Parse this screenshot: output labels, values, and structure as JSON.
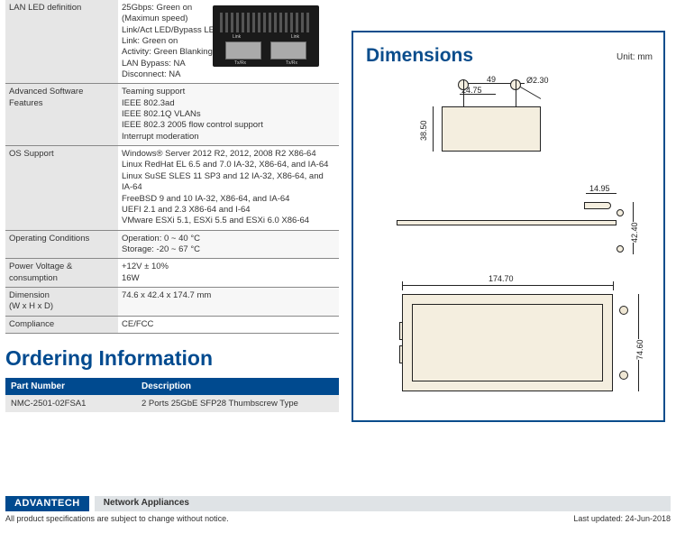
{
  "spec_rows": [
    {
      "label": "LAN LED definition",
      "value": "25Gbps: Green on\n(Maximun speed)\nLink/Act LED/Bypass LED:\nLink: Green on\nActivity: Green Blanking\nLAN Bypass: NA\nDisconnect: NA",
      "alt": false
    },
    {
      "label": "Advanced Software Features",
      "value": "Teaming support\nIEEE 802.3ad\nIEEE 802.1Q VLANs\nIEEE 802.3 2005 flow control support\nInterrupt moderation",
      "alt": true
    },
    {
      "label": "OS Support",
      "value": "Windows® Server 2012 R2, 2012, 2008 R2 X86-64\nLinux RedHat EL 6.5 and 7.0 IA-32, X86-64, and IA-64\nLinux SuSE SLES 11 SP3 and 12 IA-32, X86-64, and IA-64\nFreeBSD 9 and 10 IA-32, X86-64, and IA-64\nUEFI 2.1 and 2.3 X86-64 and I-64\nVMware ESXi 5.1, ESXi 5.5 and ESXi 6.0 X86-64",
      "alt": false
    },
    {
      "label": "Operating Conditions",
      "value": "Operation: 0 ~ 40 °C\nStorage: -20 ~ 67 °C",
      "alt": true
    },
    {
      "label": "Power Voltage & consumption",
      "value": "+12V ± 10%\n16W",
      "alt": false
    },
    {
      "label": "Dimension\n(W x H x D)",
      "value": "74.6 x 42.4 x 174.7 mm",
      "alt": true
    },
    {
      "label": "Compliance",
      "value": "CE/FCC",
      "alt": false
    }
  ],
  "ordering_title": "Ordering Information",
  "order_headers": {
    "pn": "Part Number",
    "desc": "Description"
  },
  "order_row": {
    "pn": "NMC-2501-02FSA1",
    "desc": "2 Ports 25GbE SFP28 Thumbscrew Type"
  },
  "dimensions": {
    "title": "Dimensions",
    "unit": "Unit: mm",
    "top_w": "49",
    "top_hole_pitch": "24.75",
    "top_hole_dia": "Ø2.30",
    "top_h": "38.50",
    "side_conn_h": "14.95",
    "side_h": "42.40",
    "front_w": "174.70",
    "front_h": "74.60"
  },
  "footer": {
    "brand": "ADVANTECH",
    "category": "Network Appliances",
    "disclaimer": "All product specifications are subject to change without notice.",
    "updated": "Last updated: 24-Jun-2018"
  }
}
